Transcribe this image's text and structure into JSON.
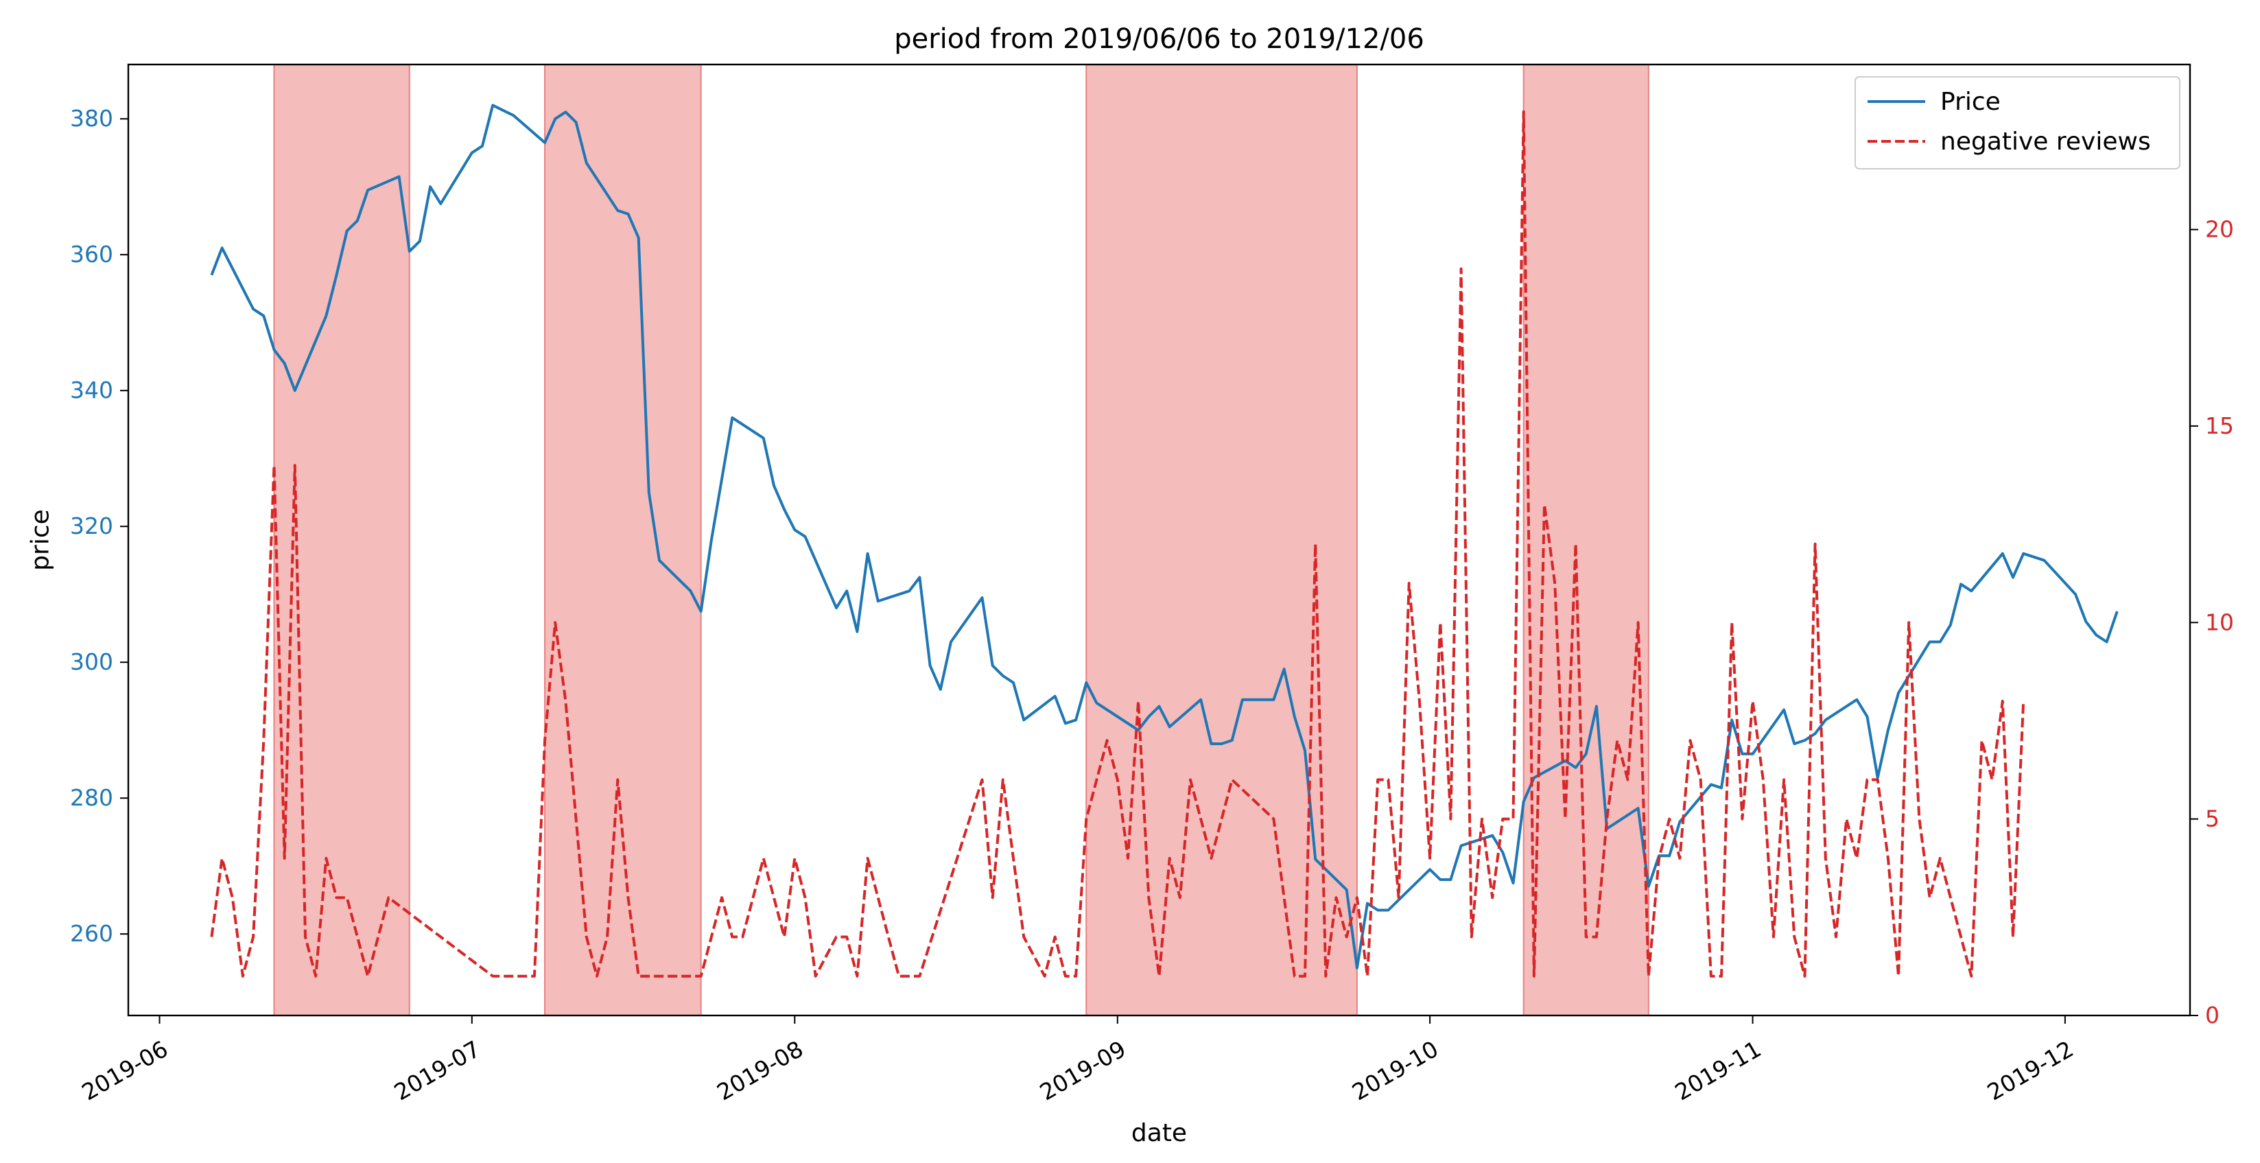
{
  "chart_data": {
    "type": "line",
    "title": "period from 2019/06/06 to 2019/12/06",
    "xlabel": "date",
    "ylabel_left": "price",
    "ylabel_right": "",
    "xlim": [
      "2019-05-29",
      "2019-12-13"
    ],
    "ylim_left": [
      248,
      388
    ],
    "ylim_right": [
      0,
      24.2
    ],
    "grid": false,
    "legend_position": "top-right",
    "x_ticks": [
      {
        "date": "2019-06-01",
        "label": "2019-06"
      },
      {
        "date": "2019-07-01",
        "label": "2019-07"
      },
      {
        "date": "2019-08-01",
        "label": "2019-08"
      },
      {
        "date": "2019-09-01",
        "label": "2019-09"
      },
      {
        "date": "2019-10-01",
        "label": "2019-10"
      },
      {
        "date": "2019-11-01",
        "label": "2019-11"
      },
      {
        "date": "2019-12-01",
        "label": "2019-12"
      }
    ],
    "y_ticks_left": [
      260,
      280,
      300,
      320,
      340,
      360,
      380
    ],
    "y_ticks_right": [
      0,
      5,
      10,
      15,
      20
    ],
    "shaded_periods": [
      {
        "start": "2019-06-12",
        "end": "2019-06-25"
      },
      {
        "start": "2019-07-08",
        "end": "2019-07-23"
      },
      {
        "start": "2019-08-29",
        "end": "2019-09-24"
      },
      {
        "start": "2019-10-10",
        "end": "2019-10-22"
      }
    ],
    "series": [
      {
        "name": "Price",
        "axis": "left",
        "color": "#1f77b4",
        "style": "solid",
        "points": [
          [
            "2019-06-06",
            357
          ],
          [
            "2019-06-07",
            361
          ],
          [
            "2019-06-10",
            352
          ],
          [
            "2019-06-11",
            351
          ],
          [
            "2019-06-12",
            346
          ],
          [
            "2019-06-13",
            344
          ],
          [
            "2019-06-14",
            340
          ],
          [
            "2019-06-17",
            351
          ],
          [
            "2019-06-18",
            357
          ],
          [
            "2019-06-19",
            363.5
          ],
          [
            "2019-06-20",
            365
          ],
          [
            "2019-06-21",
            369.5
          ],
          [
            "2019-06-24",
            371.5
          ],
          [
            "2019-06-25",
            360.5
          ],
          [
            "2019-06-26",
            362
          ],
          [
            "2019-06-27",
            370
          ],
          [
            "2019-06-28",
            367.5
          ],
          [
            "2019-07-01",
            375
          ],
          [
            "2019-07-02",
            376
          ],
          [
            "2019-07-03",
            382
          ],
          [
            "2019-07-05",
            380.5
          ],
          [
            "2019-07-08",
            376.5
          ],
          [
            "2019-07-09",
            380
          ],
          [
            "2019-07-10",
            381
          ],
          [
            "2019-07-11",
            379.5
          ],
          [
            "2019-07-12",
            373.5
          ],
          [
            "2019-07-15",
            366.5
          ],
          [
            "2019-07-16",
            366
          ],
          [
            "2019-07-17",
            362.5
          ],
          [
            "2019-07-18",
            325
          ],
          [
            "2019-07-19",
            315
          ],
          [
            "2019-07-22",
            310.5
          ],
          [
            "2019-07-23",
            307.5
          ],
          [
            "2019-07-24",
            318
          ],
          [
            "2019-07-25",
            327
          ],
          [
            "2019-07-26",
            336
          ],
          [
            "2019-07-29",
            333
          ],
          [
            "2019-07-30",
            326
          ],
          [
            "2019-07-31",
            322.5
          ],
          [
            "2019-08-01",
            319.5
          ],
          [
            "2019-08-02",
            318.5
          ],
          [
            "2019-08-05",
            308
          ],
          [
            "2019-08-06",
            310.5
          ],
          [
            "2019-08-07",
            304.5
          ],
          [
            "2019-08-08",
            316
          ],
          [
            "2019-08-09",
            309
          ],
          [
            "2019-08-12",
            310.5
          ],
          [
            "2019-08-13",
            312.5
          ],
          [
            "2019-08-14",
            299.5
          ],
          [
            "2019-08-15",
            296
          ],
          [
            "2019-08-16",
            303
          ],
          [
            "2019-08-19",
            309.5
          ],
          [
            "2019-08-20",
            299.5
          ],
          [
            "2019-08-21",
            298
          ],
          [
            "2019-08-22",
            297
          ],
          [
            "2019-08-23",
            291.5
          ],
          [
            "2019-08-26",
            295
          ],
          [
            "2019-08-27",
            291
          ],
          [
            "2019-08-28",
            291.5
          ],
          [
            "2019-08-29",
            297
          ],
          [
            "2019-08-30",
            294
          ],
          [
            "2019-09-03",
            290
          ],
          [
            "2019-09-04",
            292
          ],
          [
            "2019-09-05",
            293.5
          ],
          [
            "2019-09-06",
            290.5
          ],
          [
            "2019-09-09",
            294.5
          ],
          [
            "2019-09-10",
            288
          ],
          [
            "2019-09-11",
            288
          ],
          [
            "2019-09-12",
            288.5
          ],
          [
            "2019-09-13",
            294.5
          ],
          [
            "2019-09-16",
            294.5
          ],
          [
            "2019-09-17",
            299
          ],
          [
            "2019-09-18",
            292
          ],
          [
            "2019-09-19",
            287
          ],
          [
            "2019-09-20",
            271
          ],
          [
            "2019-09-23",
            266.5
          ],
          [
            "2019-09-24",
            255
          ],
          [
            "2019-09-25",
            264.5
          ],
          [
            "2019-09-26",
            263.5
          ],
          [
            "2019-09-27",
            263.5
          ],
          [
            "2019-09-30",
            268
          ],
          [
            "2019-10-01",
            269.5
          ],
          [
            "2019-10-02",
            268
          ],
          [
            "2019-10-03",
            268
          ],
          [
            "2019-10-04",
            273
          ],
          [
            "2019-10-07",
            274.5
          ],
          [
            "2019-10-08",
            272
          ],
          [
            "2019-10-09",
            267.5
          ],
          [
            "2019-10-10",
            279.5
          ],
          [
            "2019-10-11",
            283
          ],
          [
            "2019-10-14",
            285.5
          ],
          [
            "2019-10-15",
            284.5
          ],
          [
            "2019-10-16",
            286.5
          ],
          [
            "2019-10-17",
            293.5
          ],
          [
            "2019-10-18",
            275.5
          ],
          [
            "2019-10-21",
            278.5
          ],
          [
            "2019-10-22",
            267
          ],
          [
            "2019-10-23",
            271.5
          ],
          [
            "2019-10-24",
            271.5
          ],
          [
            "2019-10-25",
            276.5
          ],
          [
            "2019-10-28",
            282
          ],
          [
            "2019-10-29",
            281.5
          ],
          [
            "2019-10-30",
            291.5
          ],
          [
            "2019-10-31",
            286.5
          ],
          [
            "2019-11-01",
            286.5
          ],
          [
            "2019-11-04",
            293
          ],
          [
            "2019-11-05",
            288
          ],
          [
            "2019-11-06",
            288.5
          ],
          [
            "2019-11-07",
            289.5
          ],
          [
            "2019-11-08",
            291.5
          ],
          [
            "2019-11-11",
            294.5
          ],
          [
            "2019-11-12",
            292
          ],
          [
            "2019-11-13",
            283
          ],
          [
            "2019-11-14",
            290
          ],
          [
            "2019-11-15",
            295.5
          ],
          [
            "2019-11-18",
            303
          ],
          [
            "2019-11-19",
            303
          ],
          [
            "2019-11-20",
            305.5
          ],
          [
            "2019-11-21",
            311.5
          ],
          [
            "2019-11-22",
            310.5
          ],
          [
            "2019-11-25",
            316
          ],
          [
            "2019-11-26",
            312.5
          ],
          [
            "2019-11-27",
            316
          ],
          [
            "2019-11-29",
            315
          ],
          [
            "2019-12-02",
            310
          ],
          [
            "2019-12-03",
            306
          ],
          [
            "2019-12-04",
            304
          ],
          [
            "2019-12-05",
            303
          ],
          [
            "2019-12-06",
            307.5
          ]
        ]
      },
      {
        "name": "negative reviews",
        "axis": "right",
        "color": "#d62728",
        "style": "dashed",
        "points": [
          [
            "2019-06-06",
            2
          ],
          [
            "2019-06-07",
            4
          ],
          [
            "2019-06-08",
            3
          ],
          [
            "2019-06-09",
            1
          ],
          [
            "2019-06-10",
            2
          ],
          [
            "2019-06-11",
            7
          ],
          [
            "2019-06-12",
            14
          ],
          [
            "2019-06-13",
            4
          ],
          [
            "2019-06-14",
            14
          ],
          [
            "2019-06-15",
            2
          ],
          [
            "2019-06-16",
            1
          ],
          [
            "2019-06-17",
            4
          ],
          [
            "2019-06-18",
            3
          ],
          [
            "2019-06-19",
            3
          ],
          [
            "2019-06-20",
            2
          ],
          [
            "2019-06-21",
            1
          ],
          [
            "2019-06-22",
            2
          ],
          [
            "2019-06-23",
            3
          ],
          [
            "2019-06-24",
            2.8
          ],
          [
            "2019-06-25",
            2.6
          ],
          [
            "2019-07-03",
            1
          ],
          [
            "2019-07-07",
            1
          ],
          [
            "2019-07-08",
            7
          ],
          [
            "2019-07-09",
            10
          ],
          [
            "2019-07-10",
            8
          ],
          [
            "2019-07-11",
            5
          ],
          [
            "2019-07-12",
            2
          ],
          [
            "2019-07-13",
            1
          ],
          [
            "2019-07-14",
            2
          ],
          [
            "2019-07-15",
            6
          ],
          [
            "2019-07-16",
            3
          ],
          [
            "2019-07-17",
            1
          ],
          [
            "2019-07-23",
            1
          ],
          [
            "2019-07-25",
            3
          ],
          [
            "2019-07-26",
            2
          ],
          [
            "2019-07-27",
            2
          ],
          [
            "2019-07-29",
            4
          ],
          [
            "2019-07-31",
            2
          ],
          [
            "2019-08-01",
            4
          ],
          [
            "2019-08-02",
            3
          ],
          [
            "2019-08-03",
            1
          ],
          [
            "2019-08-05",
            2
          ],
          [
            "2019-08-06",
            2
          ],
          [
            "2019-08-07",
            1
          ],
          [
            "2019-08-08",
            4
          ],
          [
            "2019-08-10",
            2
          ],
          [
            "2019-08-11",
            1
          ],
          [
            "2019-08-13",
            1
          ],
          [
            "2019-08-19",
            6
          ],
          [
            "2019-08-20",
            3
          ],
          [
            "2019-08-21",
            6
          ],
          [
            "2019-08-23",
            2
          ],
          [
            "2019-08-25",
            1
          ],
          [
            "2019-08-26",
            2
          ],
          [
            "2019-08-27",
            1
          ],
          [
            "2019-08-28",
            1
          ],
          [
            "2019-08-29",
            5
          ],
          [
            "2019-08-31",
            7
          ],
          [
            "2019-09-01",
            6
          ],
          [
            "2019-09-02",
            4
          ],
          [
            "2019-09-03",
            8
          ],
          [
            "2019-09-04",
            3
          ],
          [
            "2019-09-05",
            1
          ],
          [
            "2019-09-06",
            4
          ],
          [
            "2019-09-07",
            3
          ],
          [
            "2019-09-08",
            6
          ],
          [
            "2019-09-10",
            4
          ],
          [
            "2019-09-12",
            6
          ],
          [
            "2019-09-14",
            5.5
          ],
          [
            "2019-09-16",
            5
          ],
          [
            "2019-09-18",
            1
          ],
          [
            "2019-09-19",
            1
          ],
          [
            "2019-09-20",
            12
          ],
          [
            "2019-09-21",
            1
          ],
          [
            "2019-09-22",
            3
          ],
          [
            "2019-09-23",
            2
          ],
          [
            "2019-09-24",
            3
          ],
          [
            "2019-09-25",
            1
          ],
          [
            "2019-09-26",
            6
          ],
          [
            "2019-09-27",
            6
          ],
          [
            "2019-09-28",
            3
          ],
          [
            "2019-09-29",
            11
          ],
          [
            "2019-09-30",
            8
          ],
          [
            "2019-10-01",
            4
          ],
          [
            "2019-10-02",
            10
          ],
          [
            "2019-10-03",
            5
          ],
          [
            "2019-10-04",
            19
          ],
          [
            "2019-10-05",
            2
          ],
          [
            "2019-10-06",
            5
          ],
          [
            "2019-10-07",
            3
          ],
          [
            "2019-10-08",
            5
          ],
          [
            "2019-10-09",
            5
          ],
          [
            "2019-10-10",
            23
          ],
          [
            "2019-10-11",
            1
          ],
          [
            "2019-10-12",
            13
          ],
          [
            "2019-10-13",
            11
          ],
          [
            "2019-10-14",
            5
          ],
          [
            "2019-10-15",
            12
          ],
          [
            "2019-10-16",
            2
          ],
          [
            "2019-10-17",
            2
          ],
          [
            "2019-10-18",
            5
          ],
          [
            "2019-10-19",
            7
          ],
          [
            "2019-10-20",
            6
          ],
          [
            "2019-10-21",
            10
          ],
          [
            "2019-10-22",
            1
          ],
          [
            "2019-10-23",
            4
          ],
          [
            "2019-10-24",
            5
          ],
          [
            "2019-10-25",
            4
          ],
          [
            "2019-10-26",
            7
          ],
          [
            "2019-10-27",
            6
          ],
          [
            "2019-10-28",
            1
          ],
          [
            "2019-10-29",
            1
          ],
          [
            "2019-10-30",
            10
          ],
          [
            "2019-10-31",
            5
          ],
          [
            "2019-11-01",
            8
          ],
          [
            "2019-11-02",
            6
          ],
          [
            "2019-11-03",
            2
          ],
          [
            "2019-11-04",
            6
          ],
          [
            "2019-11-05",
            2
          ],
          [
            "2019-11-06",
            1
          ],
          [
            "2019-11-07",
            12
          ],
          [
            "2019-11-08",
            4
          ],
          [
            "2019-11-09",
            2
          ],
          [
            "2019-11-10",
            5
          ],
          [
            "2019-11-11",
            4
          ],
          [
            "2019-11-12",
            6
          ],
          [
            "2019-11-13",
            6
          ],
          [
            "2019-11-14",
            4
          ],
          [
            "2019-11-15",
            1
          ],
          [
            "2019-11-16",
            10
          ],
          [
            "2019-11-17",
            5
          ],
          [
            "2019-11-18",
            3
          ],
          [
            "2019-11-19",
            4
          ],
          [
            "2019-11-20",
            3
          ],
          [
            "2019-11-21",
            2
          ],
          [
            "2019-11-22",
            1
          ],
          [
            "2019-11-23",
            7
          ],
          [
            "2019-11-24",
            6
          ],
          [
            "2019-11-25",
            8
          ],
          [
            "2019-11-26",
            2
          ],
          [
            "2019-11-27",
            8
          ]
        ]
      }
    ]
  }
}
